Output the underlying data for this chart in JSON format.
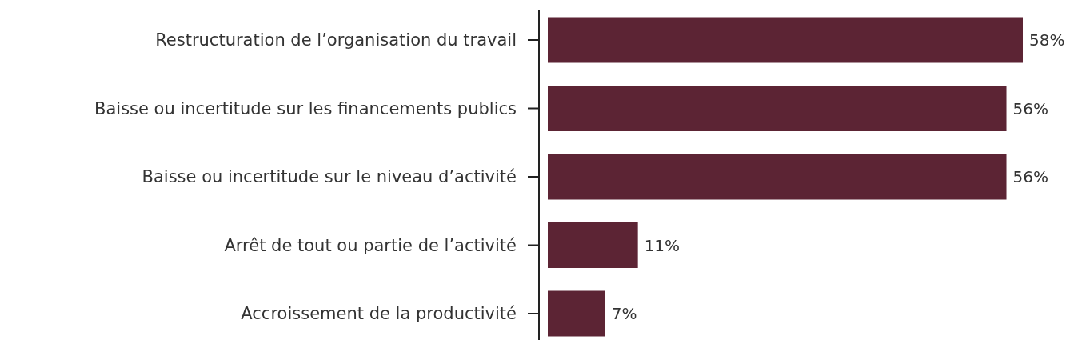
{
  "chart_data": {
    "type": "bar",
    "orientation": "horizontal",
    "categories": [
      "Restructuration de l’organisation du travail",
      "Baisse ou incertitude sur les financements publics",
      "Baisse ou incertitude sur le niveau d’activité",
      "Arrêt de tout ou partie de l’activité",
      "Accroissement de la productivité"
    ],
    "values": [
      58,
      56,
      56,
      11,
      7
    ],
    "value_labels": [
      "58%",
      "56%",
      "56%",
      "11%",
      "7%"
    ],
    "color": "#5c2434"
  }
}
